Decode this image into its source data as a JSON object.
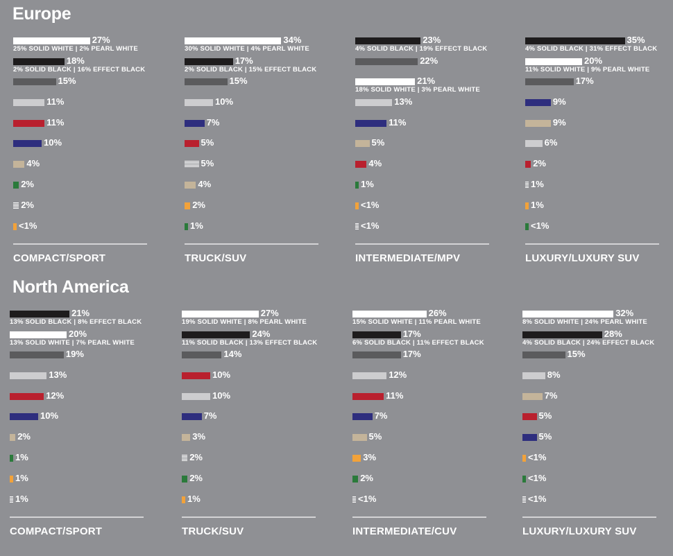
{
  "colors": {
    "white": "#ffffff",
    "black": "#1e1c1d",
    "gray": "#5b5b5d",
    "silver": "#cdcdcf",
    "red": "#b9202e",
    "blue": "#2e2e7e",
    "beige": "#c4b49a",
    "green": "#2b7a3b",
    "yellow": "#f2a23a",
    "other": "stripe"
  },
  "chart_data": [
    {
      "type": "bar",
      "region": "Europe",
      "category": "COMPACT/SPORT",
      "bars": [
        {
          "color": "white",
          "value": 27,
          "label": "27%",
          "sub": "25% SOLID WHITE | 2% PEARL WHITE"
        },
        {
          "color": "black",
          "value": 18,
          "label": "18%",
          "sub": "2% SOLID BLACK | 16% EFFECT BLACK"
        },
        {
          "color": "gray",
          "value": 15,
          "label": "15%"
        },
        {
          "color": "silver",
          "value": 11,
          "label": "11%"
        },
        {
          "color": "red",
          "value": 11,
          "label": "11%"
        },
        {
          "color": "blue",
          "value": 10,
          "label": "10%"
        },
        {
          "color": "beige",
          "value": 4,
          "label": "4%"
        },
        {
          "color": "green",
          "value": 2,
          "label": "2%"
        },
        {
          "color": "other",
          "value": 2,
          "label": "2%"
        },
        {
          "color": "yellow",
          "value": 0.5,
          "label": "<1%"
        }
      ]
    },
    {
      "type": "bar",
      "region": "Europe",
      "category": "TRUCK/SUV",
      "bars": [
        {
          "color": "white",
          "value": 34,
          "label": "34%",
          "sub": "30% SOLID WHITE | 4% PEARL WHITE"
        },
        {
          "color": "black",
          "value": 17,
          "label": "17%",
          "sub": "2% SOLID BLACK | 15% EFFECT BLACK"
        },
        {
          "color": "gray",
          "value": 15,
          "label": "15%"
        },
        {
          "color": "silver",
          "value": 10,
          "label": "10%"
        },
        {
          "color": "blue",
          "value": 7,
          "label": "7%"
        },
        {
          "color": "red",
          "value": 5,
          "label": "5%"
        },
        {
          "color": "other",
          "value": 5,
          "label": "5%"
        },
        {
          "color": "beige",
          "value": 4,
          "label": "4%"
        },
        {
          "color": "yellow",
          "value": 2,
          "label": "2%"
        },
        {
          "color": "green",
          "value": 1,
          "label": "1%"
        }
      ]
    },
    {
      "type": "bar",
      "region": "Europe",
      "category": "INTERMEDIATE/MPV",
      "bars": [
        {
          "color": "black",
          "value": 23,
          "label": "23%",
          "sub": "4% SOLID BLACK | 19% EFFECT BLACK"
        },
        {
          "color": "gray",
          "value": 22,
          "label": "22%"
        },
        {
          "color": "white",
          "value": 21,
          "label": "21%",
          "sub": "18% SOLID WHITE | 3% PEARL WHITE"
        },
        {
          "color": "silver",
          "value": 13,
          "label": "13%"
        },
        {
          "color": "blue",
          "value": 11,
          "label": "11%"
        },
        {
          "color": "beige",
          "value": 5,
          "label": "5%"
        },
        {
          "color": "red",
          "value": 4,
          "label": "4%"
        },
        {
          "color": "green",
          "value": 1,
          "label": "1%"
        },
        {
          "color": "yellow",
          "value": 0.5,
          "label": "<1%"
        },
        {
          "color": "other",
          "value": 0.5,
          "label": "<1%"
        }
      ]
    },
    {
      "type": "bar",
      "region": "Europe",
      "category": "LUXURY/LUXURY SUV",
      "bars": [
        {
          "color": "black",
          "value": 35,
          "label": "35%",
          "sub": "4% SOLID BLACK | 31% EFFECT BLACK"
        },
        {
          "color": "white",
          "value": 20,
          "label": "20%",
          "sub": "11% SOLID WHITE | 9% PEARL WHITE"
        },
        {
          "color": "gray",
          "value": 17,
          "label": "17%"
        },
        {
          "color": "blue",
          "value": 9,
          "label": "9%"
        },
        {
          "color": "beige",
          "value": 9,
          "label": "9%"
        },
        {
          "color": "silver",
          "value": 6,
          "label": "6%"
        },
        {
          "color": "red",
          "value": 2,
          "label": "2%"
        },
        {
          "color": "other",
          "value": 1,
          "label": "1%"
        },
        {
          "color": "yellow",
          "value": 1,
          "label": "1%"
        },
        {
          "color": "green",
          "value": 0.5,
          "label": "<1%"
        }
      ]
    },
    {
      "type": "bar",
      "region": "North America",
      "category": "COMPACT/SPORT",
      "bars": [
        {
          "color": "black",
          "value": 21,
          "label": "21%",
          "sub": "13% SOLID BLACK | 8% EFFECT BLACK"
        },
        {
          "color": "white",
          "value": 20,
          "label": "20%",
          "sub": "13% SOLID WHITE | 7% PEARL WHITE"
        },
        {
          "color": "gray",
          "value": 19,
          "label": "19%"
        },
        {
          "color": "silver",
          "value": 13,
          "label": "13%"
        },
        {
          "color": "red",
          "value": 12,
          "label": "12%"
        },
        {
          "color": "blue",
          "value": 10,
          "label": "10%"
        },
        {
          "color": "beige",
          "value": 2,
          "label": "2%"
        },
        {
          "color": "green",
          "value": 1,
          "label": "1%"
        },
        {
          "color": "yellow",
          "value": 1,
          "label": "1%"
        },
        {
          "color": "other",
          "value": 1,
          "label": "1%"
        }
      ]
    },
    {
      "type": "bar",
      "region": "North America",
      "category": "TRUCK/SUV",
      "bars": [
        {
          "color": "white",
          "value": 27,
          "label": "27%",
          "sub": "19% SOLID WHITE | 8% PEARL WHITE"
        },
        {
          "color": "black",
          "value": 24,
          "label": "24%",
          "sub": "11% SOLID BLACK | 13% EFFECT BLACK"
        },
        {
          "color": "gray",
          "value": 14,
          "label": "14%"
        },
        {
          "color": "red",
          "value": 10,
          "label": "10%"
        },
        {
          "color": "silver",
          "value": 10,
          "label": "10%"
        },
        {
          "color": "blue",
          "value": 7,
          "label": "7%"
        },
        {
          "color": "beige",
          "value": 3,
          "label": "3%"
        },
        {
          "color": "other",
          "value": 2,
          "label": "2%"
        },
        {
          "color": "green",
          "value": 2,
          "label": "2%"
        },
        {
          "color": "yellow",
          "value": 1,
          "label": "1%"
        }
      ]
    },
    {
      "type": "bar",
      "region": "North America",
      "category": "INTERMEDIATE/CUV",
      "bars": [
        {
          "color": "white",
          "value": 26,
          "label": "26%",
          "sub": "15% SOLID WHITE | 11% PEARL WHITE"
        },
        {
          "color": "black",
          "value": 17,
          "label": "17%",
          "sub": "6% SOLID BLACK | 11% EFFECT BLACK"
        },
        {
          "color": "gray",
          "value": 17,
          "label": "17%"
        },
        {
          "color": "silver",
          "value": 12,
          "label": "12%"
        },
        {
          "color": "red",
          "value": 11,
          "label": "11%"
        },
        {
          "color": "blue",
          "value": 7,
          "label": "7%"
        },
        {
          "color": "beige",
          "value": 5,
          "label": "5%"
        },
        {
          "color": "yellow",
          "value": 3,
          "label": "3%"
        },
        {
          "color": "green",
          "value": 2,
          "label": "2%"
        },
        {
          "color": "other",
          "value": 0.5,
          "label": "<1%"
        }
      ]
    },
    {
      "type": "bar",
      "region": "North America",
      "category": "LUXURY/LUXURY SUV",
      "bars": [
        {
          "color": "white",
          "value": 32,
          "label": "32%",
          "sub": "8% SOLID WHITE | 24% PEARL WHITE"
        },
        {
          "color": "black",
          "value": 28,
          "label": "28%",
          "sub": "4% SOLID BLACK | 24% EFFECT BLACK"
        },
        {
          "color": "gray",
          "value": 15,
          "label": "15%"
        },
        {
          "color": "silver",
          "value": 8,
          "label": "8%"
        },
        {
          "color": "beige",
          "value": 7,
          "label": "7%"
        },
        {
          "color": "red",
          "value": 5,
          "label": "5%"
        },
        {
          "color": "blue",
          "value": 5,
          "label": "5%"
        },
        {
          "color": "yellow",
          "value": 0.5,
          "label": "<1%"
        },
        {
          "color": "green",
          "value": 0.5,
          "label": "<1%"
        },
        {
          "color": "other",
          "value": 0.5,
          "label": "<1%"
        }
      ]
    }
  ],
  "regions": [
    {
      "title": "Europe"
    },
    {
      "title": "North America"
    }
  ]
}
